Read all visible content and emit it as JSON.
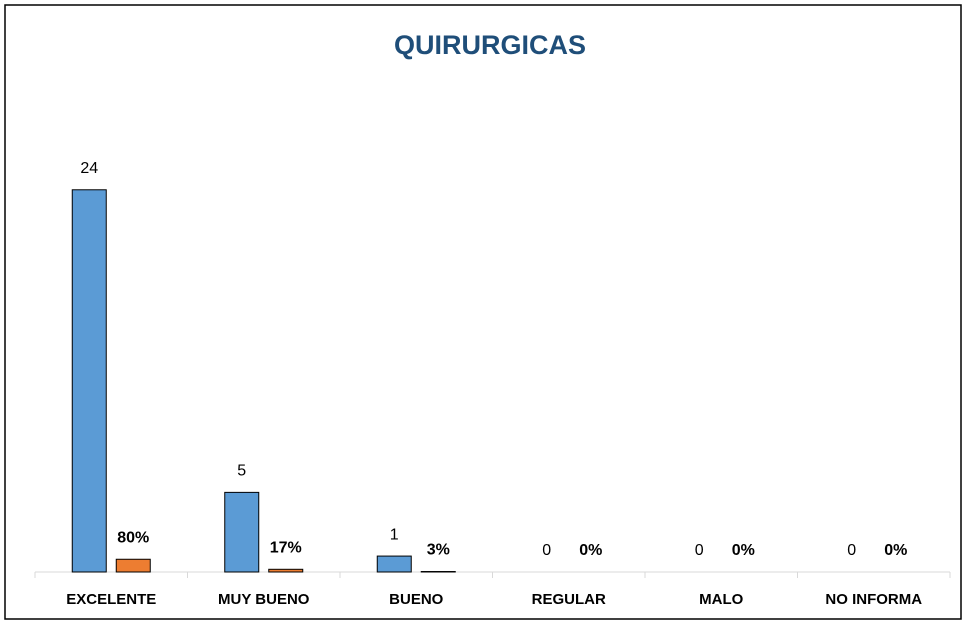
{
  "chart_data": {
    "type": "bar",
    "title": "QUIRURGICAS",
    "categories": [
      "EXCELENTE",
      "MUY BUENO",
      "BUENO",
      "REGULAR",
      "MALO",
      "NO INFORMA"
    ],
    "series": [
      {
        "color": "#5b9bd5",
        "values": [
          24,
          5,
          1,
          0,
          0,
          0
        ]
      },
      {
        "color": "#ed7d31",
        "values": [
          0.8,
          0.17,
          0.03,
          0,
          0,
          0
        ],
        "value_labels": [
          "80%",
          "17%",
          "3%",
          "0%",
          "0%",
          "0%"
        ]
      }
    ],
    "ylim": [
      0,
      27
    ]
  }
}
